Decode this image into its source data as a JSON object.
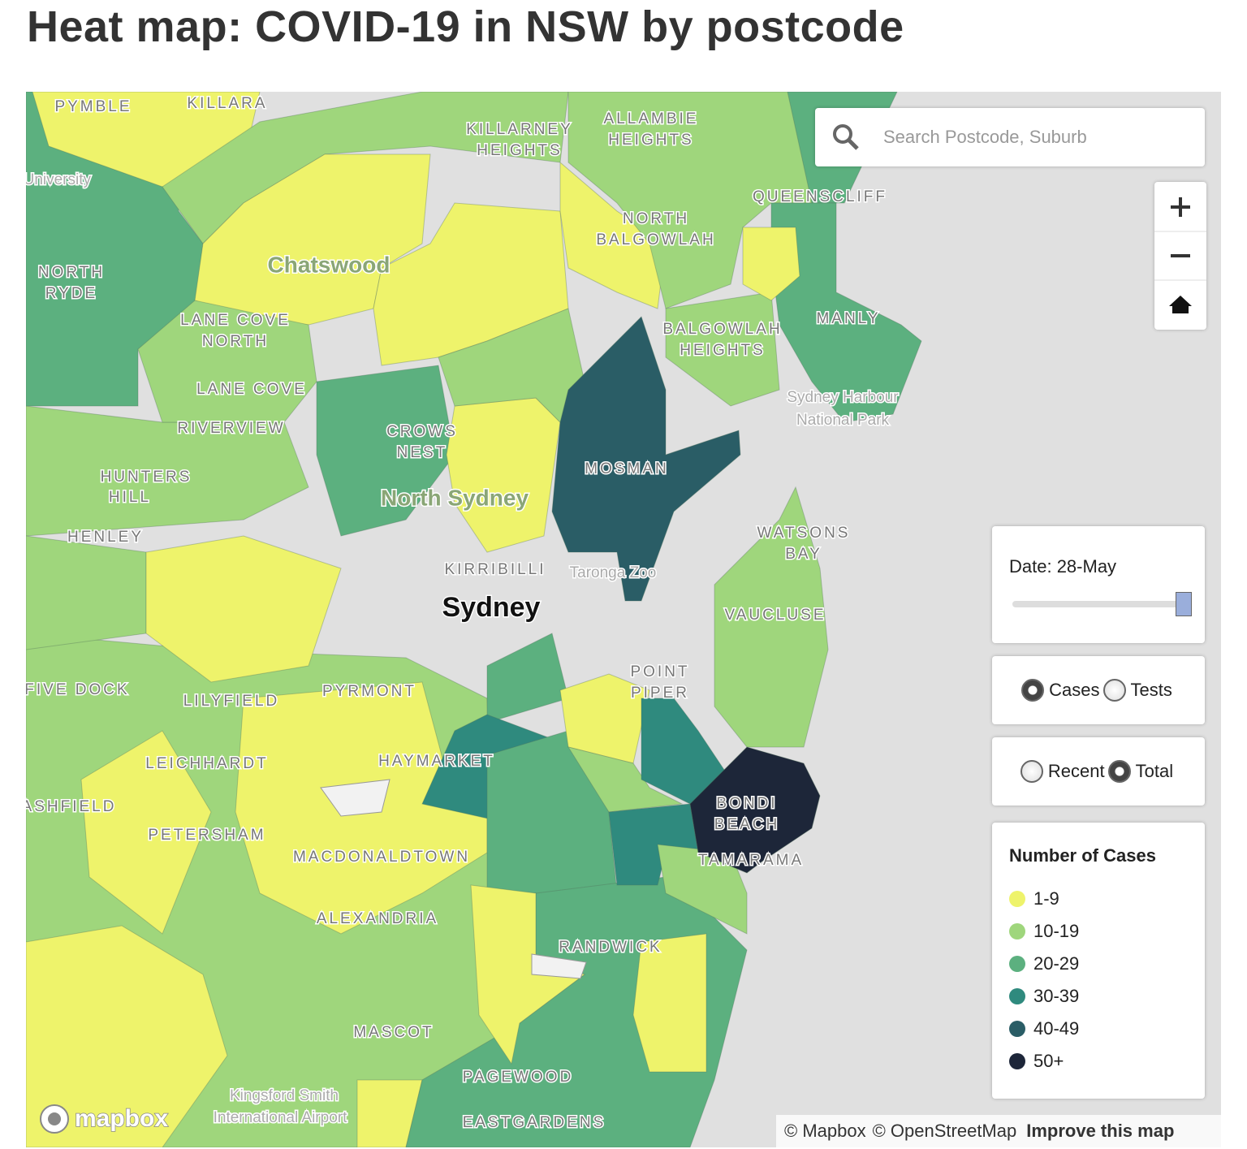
{
  "header": {
    "title": "Heat map: COVID-19 in NSW by postcode"
  },
  "map": {
    "labels": [
      "PYMBLE",
      "KILLARA",
      "KILLARNEY",
      "HEIGHTS",
      "ALLAMBIE",
      "HEIGHTS",
      "University",
      "NORTH",
      "RYDE",
      "Chatswood",
      "LANE COVE",
      "NORTH",
      "NORTH",
      "BALGOWLAH",
      "QUEENSCLIFF",
      "MANLY",
      "BALGOWLAH",
      "HEIGHTS",
      "LANE COVE",
      "RIVERVIEW",
      "CROWS",
      "NEST",
      "HUNTERS",
      "HILL",
      "North Sydney",
      "MOSMAN",
      "HENLEY",
      "Sydney Harbour",
      "National Park",
      "WATSONS",
      "BAY",
      "KIRRIBILLI",
      "Taronga Zoo",
      "Sydney",
      "VAUCLUSE",
      "POINT",
      "PIPER",
      "FIVE DOCK",
      "LILYFIELD",
      "PYRMONT",
      "LEICHHARDT",
      "HAYMARKET",
      "BONDI",
      "BEACH",
      "ASHFIELD",
      "PETERSHAM",
      "TAMARAMA",
      "MACDONALDTOWN",
      "ALEXANDRIA",
      "RANDWICK",
      "MASCOT",
      "PAGEWOOD",
      "EASTGARDENS",
      "Kingsford Smith",
      "International Airport"
    ],
    "logo": "mapbox",
    "attribution": [
      "© Mapbox",
      "© OpenStreetMap",
      "Improve this map"
    ]
  },
  "search": {
    "placeholder": "Search Postcode, Suburb"
  },
  "date": {
    "label": "Date: 28-May"
  },
  "measure": {
    "options": [
      "Cases",
      "Tests"
    ],
    "selected": 0
  },
  "period": {
    "options": [
      "Recent",
      "Total"
    ],
    "selected": 1
  },
  "legend": {
    "title": "Number of Cases",
    "items": [
      {
        "label": "1-9",
        "color": "#eef36b"
      },
      {
        "label": "10-19",
        "color": "#9fd67c"
      },
      {
        "label": "20-29",
        "color": "#5cb07f"
      },
      {
        "label": "30-39",
        "color": "#2f8a7e"
      },
      {
        "label": "40-49",
        "color": "#2a5d66"
      },
      {
        "label": "50+",
        "color": "#1d2639"
      }
    ]
  }
}
